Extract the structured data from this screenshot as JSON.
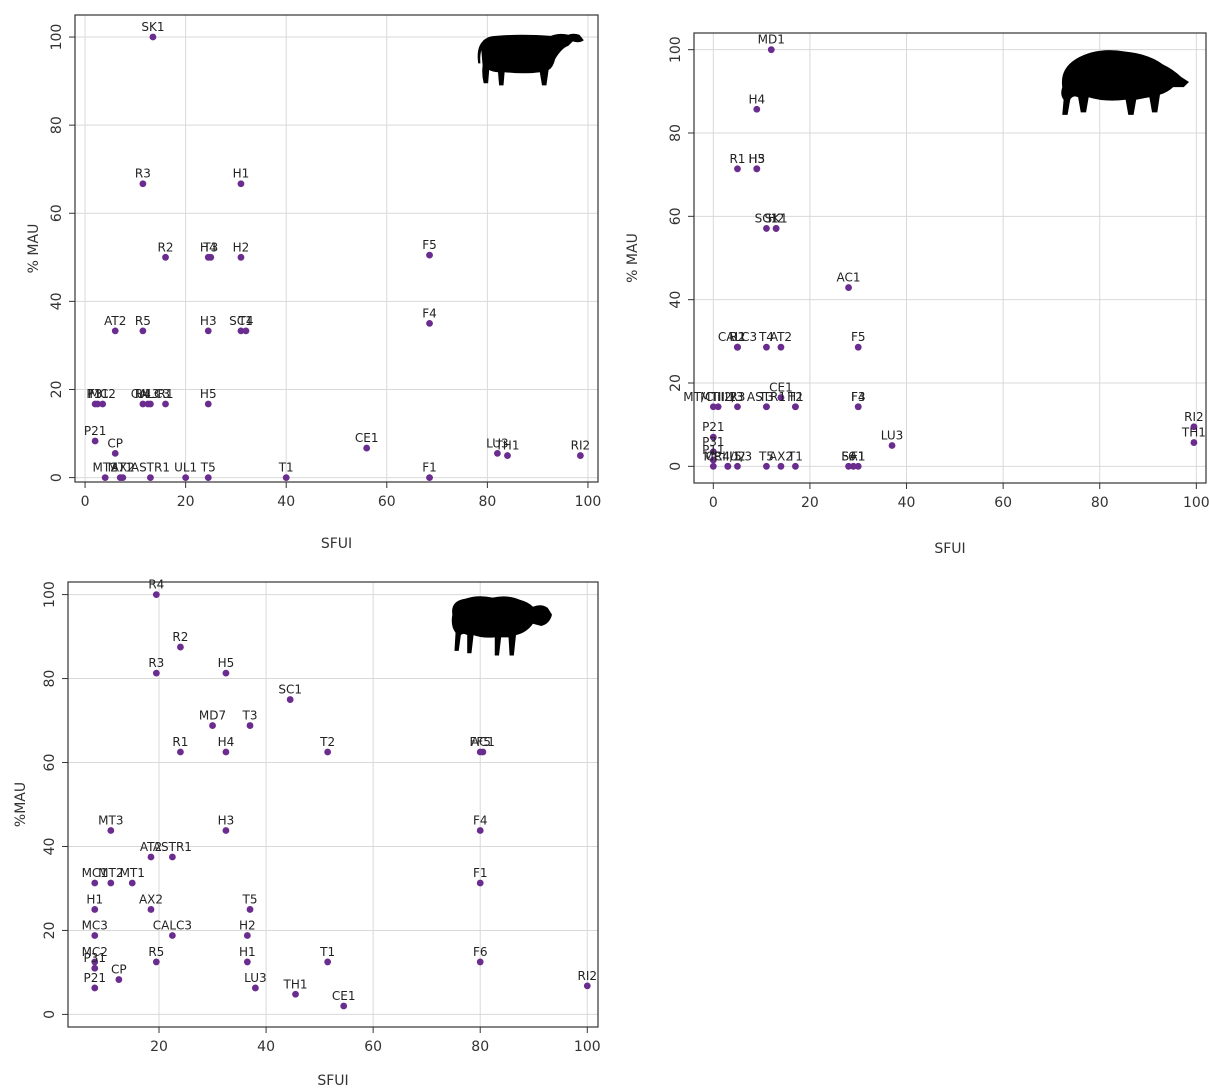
{
  "colors": {
    "point": "#6a2c8e",
    "grid": "#d9d9d9",
    "frame": "#333333",
    "silhouette": "#000000"
  },
  "chart_data": [
    {
      "type": "scatter",
      "animal_icon": "cow-silhouette-icon",
      "xlabel": "SFUI",
      "ylabel": "% MAU",
      "xlim": [
        -2,
        102
      ],
      "ylim": [
        -1,
        105
      ],
      "xticks": [
        0,
        20,
        40,
        60,
        80,
        100
      ],
      "yticks": [
        0,
        20,
        40,
        60,
        80,
        100
      ],
      "grid": true,
      "points": [
        {
          "label": "SK1",
          "x": 13.5,
          "y": 100
        },
        {
          "label": "R3",
          "x": 11.5,
          "y": 66.7
        },
        {
          "label": "H1",
          "x": 31,
          "y": 66.7
        },
        {
          "label": "R2",
          "x": 16,
          "y": 50
        },
        {
          "label": "T3",
          "x": 25,
          "y": 50
        },
        {
          "label": "H4",
          "x": 24.5,
          "y": 50
        },
        {
          "label": "H2",
          "x": 31,
          "y": 50
        },
        {
          "label": "F5",
          "x": 68.5,
          "y": 50.5
        },
        {
          "label": "AT2",
          "x": 6,
          "y": 33.3
        },
        {
          "label": "R5",
          "x": 11.5,
          "y": 33.3
        },
        {
          "label": "H3",
          "x": 24.5,
          "y": 33.3
        },
        {
          "label": "SC1",
          "x": 31,
          "y": 33.3
        },
        {
          "label": "T4",
          "x": 32,
          "y": 33.3
        },
        {
          "label": "F4",
          "x": 68.5,
          "y": 35
        },
        {
          "label": "F3",
          "x": 2,
          "y": 16.7
        },
        {
          "label": "MC2",
          "x": 3.5,
          "y": 16.7
        },
        {
          "label": "UL3",
          "x": 12.5,
          "y": 16.7
        },
        {
          "label": "R4",
          "x": 11.5,
          "y": 16.7
        },
        {
          "label": "R1",
          "x": 16,
          "y": 16.7
        },
        {
          "label": "CALC3",
          "x": 13,
          "y": 16.7
        },
        {
          "label": "H5",
          "x": 24.5,
          "y": 16.7
        },
        {
          "label": "P11",
          "x": 2.5,
          "y": 16.7
        },
        {
          "label": "P21",
          "x": 2,
          "y": 8.3
        },
        {
          "label": "CP",
          "x": 6,
          "y": 5.5
        },
        {
          "label": "MT2",
          "x": 4,
          "y": 0
        },
        {
          "label": "MT1",
          "x": 7,
          "y": 0
        },
        {
          "label": "AX2",
          "x": 7.5,
          "y": 0
        },
        {
          "label": "ASTR1",
          "x": 13,
          "y": 0
        },
        {
          "label": "UL1",
          "x": 20,
          "y": 0
        },
        {
          "label": "T5",
          "x": 24.5,
          "y": 0
        },
        {
          "label": "T1",
          "x": 40,
          "y": 0
        },
        {
          "label": "CE1",
          "x": 56,
          "y": 6.7
        },
        {
          "label": "F1",
          "x": 68.5,
          "y": 0
        },
        {
          "label": "LU3",
          "x": 82,
          "y": 5.5
        },
        {
          "label": "TH1",
          "x": 84,
          "y": 5
        },
        {
          "label": "RI2",
          "x": 98.5,
          "y": 5
        }
      ]
    },
    {
      "type": "scatter",
      "animal_icon": "boar-silhouette-icon",
      "xlabel": "SFUI",
      "ylabel": "% MAU",
      "xlim": [
        -4,
        102
      ],
      "ylim": [
        -4,
        104
      ],
      "xticks": [
        0,
        20,
        40,
        60,
        80,
        100
      ],
      "yticks": [
        0,
        20,
        40,
        60,
        80,
        100
      ],
      "grid": true,
      "points": [
        {
          "label": "MD1",
          "x": 12,
          "y": 100
        },
        {
          "label": "H4",
          "x": 9,
          "y": 85.7
        },
        {
          "label": "R1",
          "x": 5,
          "y": 71.4
        },
        {
          "label": "H3",
          "x": 9,
          "y": 71.4
        },
        {
          "label": "H5",
          "x": 9,
          "y": 71.4
        },
        {
          "label": "SC1",
          "x": 11,
          "y": 57.1
        },
        {
          "label": "H2",
          "x": 13,
          "y": 57.1
        },
        {
          "label": "SK1",
          "x": 13,
          "y": 57.1
        },
        {
          "label": "AC1",
          "x": 28,
          "y": 42.9
        },
        {
          "label": "CALC3",
          "x": 5,
          "y": 28.6
        },
        {
          "label": "R2",
          "x": 5,
          "y": 28.6
        },
        {
          "label": "T4",
          "x": 11,
          "y": 28.6
        },
        {
          "label": "AT2",
          "x": 14,
          "y": 28.6
        },
        {
          "label": "U1",
          "x": 5,
          "y": 28.6
        },
        {
          "label": "F5",
          "x": 30,
          "y": 28.6
        },
        {
          "label": "MT/CIII2/3",
          "x": 0,
          "y": 14.3
        },
        {
          "label": "CE1",
          "x": 14,
          "y": 16.5
        },
        {
          "label": "ASTR1",
          "x": 11,
          "y": 14.3
        },
        {
          "label": "T2",
          "x": 17,
          "y": 14.3
        },
        {
          "label": "MTIII1",
          "x": 1,
          "y": 14.3
        },
        {
          "label": "R3",
          "x": 5,
          "y": 14.3
        },
        {
          "label": "T3",
          "x": 11,
          "y": 14.3
        },
        {
          "label": "H1",
          "x": 17,
          "y": 14.3
        },
        {
          "label": "F3",
          "x": 30,
          "y": 14.3
        },
        {
          "label": "F4",
          "x": 30,
          "y": 14.3
        },
        {
          "label": "P21",
          "x": 0,
          "y": 7
        },
        {
          "label": "P31",
          "x": 0,
          "y": 3.5
        },
        {
          "label": "P11",
          "x": 0,
          "y": 1.5
        },
        {
          "label": "CP",
          "x": 0,
          "y": 0
        },
        {
          "label": "R4/5",
          "x": 3,
          "y": 0
        },
        {
          "label": "U2",
          "x": 5,
          "y": 0
        },
        {
          "label": "MCIII1/3",
          "x": 3,
          "y": 0
        },
        {
          "label": "T5",
          "x": 11,
          "y": 0
        },
        {
          "label": "AX2",
          "x": 14,
          "y": 0
        },
        {
          "label": "T1",
          "x": 17,
          "y": 0
        },
        {
          "label": "F6",
          "x": 28,
          "y": 0
        },
        {
          "label": "F1",
          "x": 30,
          "y": 0
        },
        {
          "label": "SA1",
          "x": 29,
          "y": 0
        },
        {
          "label": "LU3",
          "x": 37,
          "y": 5
        },
        {
          "label": "RI2",
          "x": 99.5,
          "y": 9.5
        },
        {
          "label": "TH1",
          "x": 99.5,
          "y": 5.7
        }
      ]
    },
    {
      "type": "scatter",
      "animal_icon": "sheep-silhouette-icon",
      "xlabel": "SFUI",
      "ylabel": "%MAU",
      "xlim": [
        3,
        102
      ],
      "ylim": [
        -3,
        103
      ],
      "xticks": [
        20,
        40,
        60,
        80,
        100
      ],
      "yticks": [
        0,
        20,
        40,
        60,
        80,
        100
      ],
      "grid": true,
      "points": [
        {
          "label": "R4",
          "x": 19.5,
          "y": 100
        },
        {
          "label": "R2",
          "x": 24,
          "y": 87.5
        },
        {
          "label": "R3",
          "x": 19.5,
          "y": 81.3
        },
        {
          "label": "H5",
          "x": 32.5,
          "y": 81.3
        },
        {
          "label": "SC1",
          "x": 44.5,
          "y": 75
        },
        {
          "label": "MD7",
          "x": 30,
          "y": 68.8
        },
        {
          "label": "T3",
          "x": 37,
          "y": 68.8
        },
        {
          "label": "R1",
          "x": 24,
          "y": 62.5
        },
        {
          "label": "H4",
          "x": 32.5,
          "y": 62.5
        },
        {
          "label": "T2",
          "x": 51.5,
          "y": 62.5
        },
        {
          "label": "FF5",
          "x": 80,
          "y": 62.5
        },
        {
          "label": "AC1",
          "x": 80.5,
          "y": 62.5
        },
        {
          "label": "MT3",
          "x": 11,
          "y": 43.8
        },
        {
          "label": "H3",
          "x": 32.5,
          "y": 43.8
        },
        {
          "label": "F4",
          "x": 80,
          "y": 43.8
        },
        {
          "label": "AT2",
          "x": 18.5,
          "y": 37.5
        },
        {
          "label": "ASTR1",
          "x": 22.5,
          "y": 37.5
        },
        {
          "label": "MT2",
          "x": 11,
          "y": 31.3
        },
        {
          "label": "MT1",
          "x": 15,
          "y": 31.3
        },
        {
          "label": "MC1",
          "x": 8,
          "y": 31.3
        },
        {
          "label": "F1",
          "x": 80,
          "y": 31.3
        },
        {
          "label": "H1",
          "x": 8,
          "y": 25
        },
        {
          "label": "AX2",
          "x": 18.5,
          "y": 25
        },
        {
          "label": "T5",
          "x": 37,
          "y": 25
        },
        {
          "label": "MC3",
          "x": 8,
          "y": 18.8
        },
        {
          "label": "CALC3",
          "x": 22.5,
          "y": 18.8
        },
        {
          "label": "H2",
          "x": 36.5,
          "y": 18.8
        },
        {
          "label": "MC2",
          "x": 8,
          "y": 12.5
        },
        {
          "label": "R5",
          "x": 19.5,
          "y": 12.5
        },
        {
          "label": "H1",
          "x": 36.5,
          "y": 12.5
        },
        {
          "label": "T1",
          "x": 51.5,
          "y": 12.5
        },
        {
          "label": "F6",
          "x": 80,
          "y": 12.5
        },
        {
          "label": "P31",
          "x": 8,
          "y": 11
        },
        {
          "label": "CP",
          "x": 12.5,
          "y": 8.3
        },
        {
          "label": "P21",
          "x": 8,
          "y": 6.3
        },
        {
          "label": "LU3",
          "x": 38,
          "y": 6.3
        },
        {
          "label": "TH1",
          "x": 45.5,
          "y": 4.8
        },
        {
          "label": "CE1",
          "x": 54.5,
          "y": 2
        },
        {
          "label": "RI2",
          "x": 100,
          "y": 6.8
        }
      ]
    }
  ]
}
